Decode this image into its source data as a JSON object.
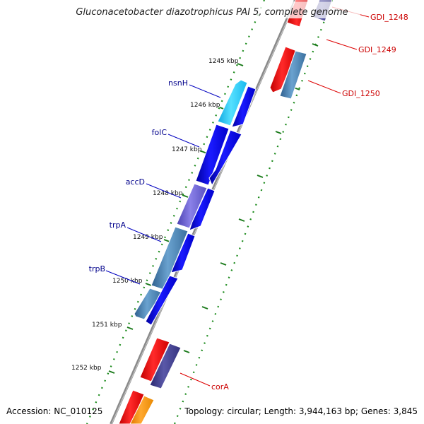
{
  "title": "Gluconacetobacter diazotrophicus PAI 5, complete genome",
  "accession": "Accession: NC_010125",
  "topology": "Topology: circular; Length: 3,944,163 bp; Genes: 3,845",
  "ticks": [
    "1245 kbp",
    "1246 kbp",
    "1247 kbp",
    "1248 kbp",
    "1249 kbp",
    "1250 kbp",
    "1251 kbp",
    "1252 kbp"
  ],
  "left_genes": [
    "nsnH",
    "folC",
    "accD",
    "trpA",
    "trpB"
  ],
  "right_genes": [
    "GDI_1248",
    "GDI_1249",
    "GDI_1250",
    "corA"
  ],
  "colors": {
    "left_label": "#00008b",
    "right_label": "#cc0000",
    "tick": "#1a7a1a",
    "backbone": "#8a8a8a"
  }
}
